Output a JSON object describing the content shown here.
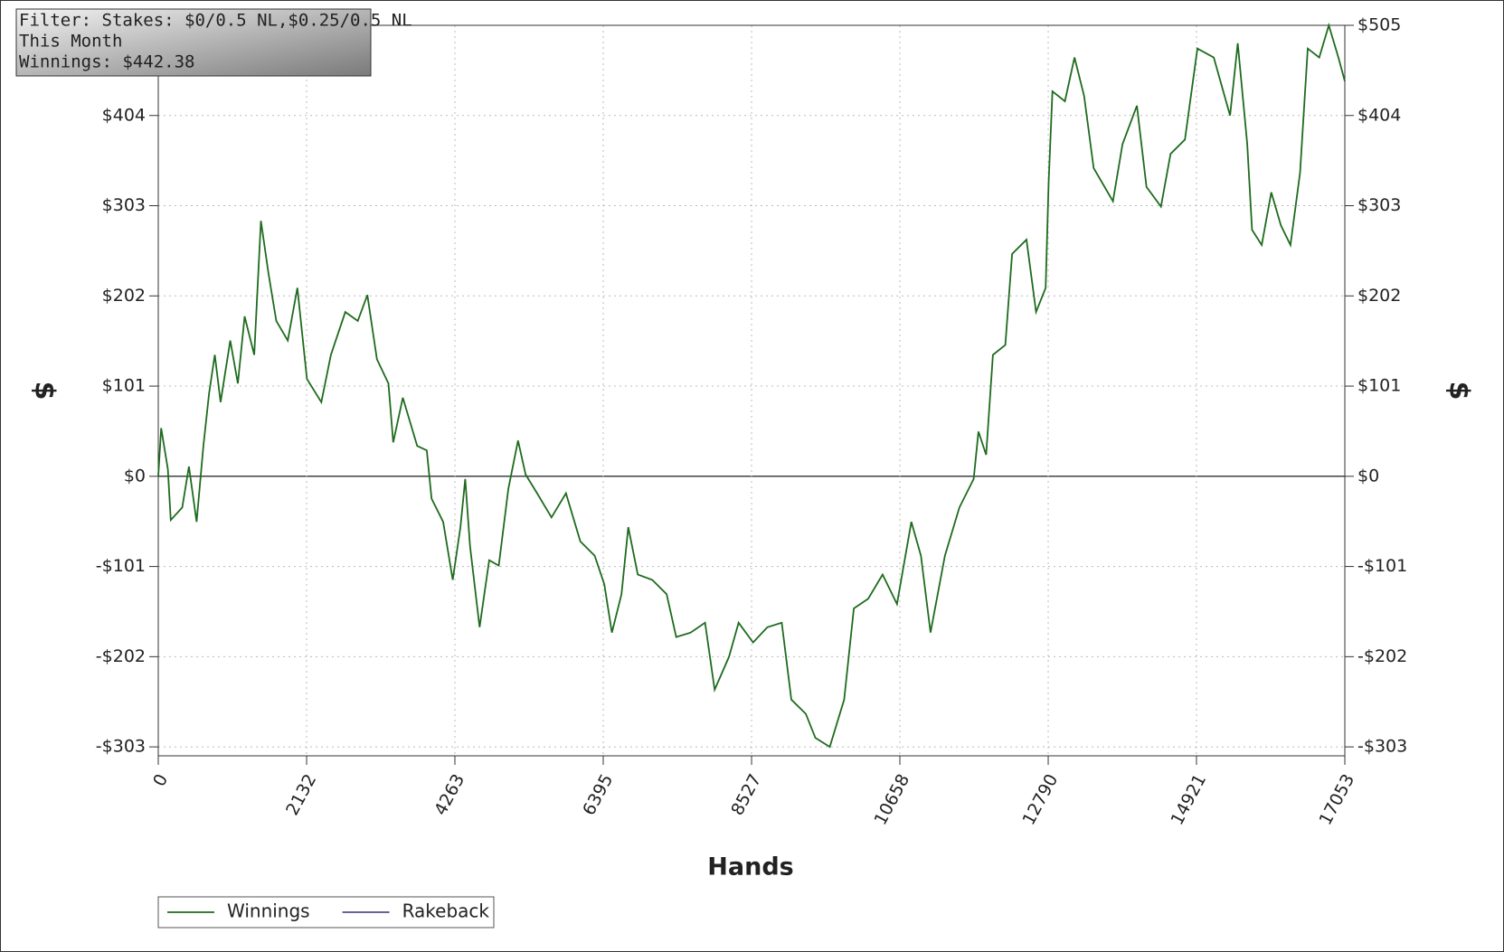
{
  "chart_data": {
    "type": "line",
    "annotations": [
      "Filter: Stakes: $0/0.5 NL,$0.25/0.5 NL",
      "This Month",
      "Winnings: $442.38"
    ],
    "xlabel": "Hands",
    "ylabel": "$",
    "x": [
      0,
      41,
      138,
      179,
      345,
      441,
      551,
      648,
      731,
      813,
      896,
      1034,
      1144,
      1241,
      1379,
      1475,
      1585,
      1696,
      1861,
      1999,
      2137,
      2344,
      2481,
      2688,
      2867,
      3005,
      3143,
      3308,
      3377,
      3515,
      3721,
      3859,
      3928,
      4094,
      4232,
      4342,
      4411,
      4480,
      4618,
      4756,
      4894,
      5032,
      5170,
      5280,
      5445,
      5652,
      5859,
      6066,
      6273,
      6411,
      6520,
      6658,
      6755,
      6892,
      7099,
      7306,
      7444,
      7651,
      7858,
      7996,
      8203,
      8341,
      8548,
      8754,
      8961,
      9099,
      9306,
      9444,
      9651,
      9858,
      9996,
      10203,
      10410,
      10616,
      10823,
      10961,
      11099,
      11306,
      11513,
      11719,
      11788,
      11898,
      11995,
      12174,
      12271,
      12478,
      12616,
      12754,
      12796,
      12851,
      13030,
      13168,
      13306,
      13444,
      13720,
      13858,
      14065,
      14203,
      14410,
      14548,
      14755,
      14934,
      15169,
      15403,
      15514,
      15651,
      15720,
      15858,
      15996,
      16134,
      16272,
      16410,
      16520,
      16685,
      16823,
      16961,
      17053
    ],
    "series": [
      {
        "name": "Winnings",
        "color": "#1e6b1e",
        "values": [
          0,
          54,
          8,
          -49,
          -35,
          11,
          -51,
          34,
          93,
          136,
          83,
          152,
          104,
          179,
          136,
          286,
          227,
          174,
          152,
          211,
          109,
          83,
          136,
          184,
          174,
          203,
          131,
          104,
          38,
          88,
          34,
          29,
          -25,
          -51,
          -116,
          -57,
          -3,
          -78,
          -169,
          -94,
          -100,
          -14,
          40,
          2,
          -19,
          -46,
          -19,
          -73,
          -89,
          -121,
          -175,
          -132,
          -57,
          -110,
          -116,
          -132,
          -180,
          -175,
          -164,
          -239,
          -202,
          -164,
          -186,
          -169,
          -164,
          -250,
          -266,
          -293,
          -303,
          -250,
          -148,
          -137,
          -110,
          -143,
          -51,
          -89,
          -175,
          -89,
          -35,
          -3,
          50,
          24,
          136,
          147,
          249,
          265,
          184,
          211,
          329,
          431,
          420,
          469,
          426,
          345,
          308,
          372,
          415,
          324,
          302,
          361,
          377,
          479,
          469,
          404,
          485,
          372,
          276,
          259,
          318,
          281,
          259,
          340,
          479,
          469,
          505,
          469,
          442.38
        ]
      },
      {
        "name": "Rakeback",
        "color": "#5a4a8a",
        "values": [
          null,
          null,
          null,
          null,
          null,
          null,
          null,
          null,
          null,
          null,
          null,
          null,
          null,
          null,
          null,
          null,
          null,
          null,
          null,
          null,
          null,
          null,
          null,
          null,
          null,
          null,
          null,
          null,
          null,
          null,
          null,
          null,
          null,
          null,
          null,
          null,
          null,
          null,
          null,
          null,
          null,
          null,
          null,
          null,
          null,
          null,
          null,
          null,
          null,
          null,
          null,
          null,
          null,
          null,
          null,
          null,
          null,
          null,
          null,
          null,
          null,
          null,
          null,
          null,
          null,
          null,
          null,
          null,
          null,
          null,
          null,
          null,
          null,
          null,
          null,
          null,
          null,
          null,
          null,
          null,
          null,
          null,
          null,
          null,
          null,
          null,
          null,
          null,
          null,
          null,
          null,
          null,
          null,
          null,
          null,
          null,
          null,
          null,
          null,
          null,
          null,
          null,
          null,
          null,
          null,
          null,
          null,
          null,
          null,
          null,
          null,
          null,
          null,
          null,
          null,
          null,
          null
        ]
      }
    ],
    "xlim": [
      0,
      17053
    ],
    "xticks": [
      0,
      2132,
      4263,
      6395,
      8527,
      10658,
      12790,
      14921,
      17053
    ],
    "ylim": [
      -313,
      505
    ],
    "yticks": [
      {
        "value": -303,
        "label": "-$303"
      },
      {
        "value": -202,
        "label": "-$202"
      },
      {
        "value": -101,
        "label": "-$101"
      },
      {
        "value": 0,
        "label": "$0"
      },
      {
        "value": 101,
        "label": "$101"
      },
      {
        "value": 202,
        "label": "$202"
      },
      {
        "value": 303,
        "label": "$303"
      },
      {
        "value": 404,
        "label": "$404"
      },
      {
        "value": 505,
        "label": "$505"
      }
    ],
    "grid": true,
    "legend": "bottom-left"
  }
}
